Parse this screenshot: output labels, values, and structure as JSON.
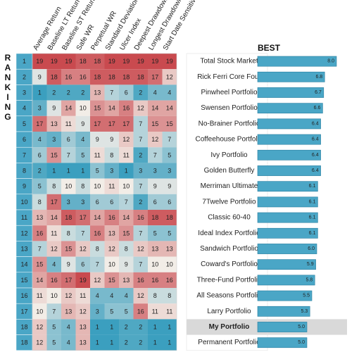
{
  "chart_data": {
    "type": "heatmap",
    "ranking_label": "RANKING",
    "columns": [
      "Average Return",
      "Baseline LT Return",
      "Baseline ST Return",
      "Safe WR",
      "Perpetual WR",
      "Standard Deviation",
      "Ulcer Index",
      "Deepest Drawdown",
      "Longest Drawdown",
      "Start Date Sensitivity"
    ],
    "rows": [
      {
        "rank": "1",
        "name": "Total Stock Market",
        "values": [
          19,
          19,
          19,
          18,
          18,
          19,
          19,
          19,
          19,
          19
        ],
        "best": 8.0,
        "best_label": "8.0"
      },
      {
        "rank": "2",
        "name": "Rick Ferri Core Four",
        "values": [
          9,
          18,
          16,
          16,
          18,
          18,
          18,
          18,
          17,
          12
        ],
        "best": 6.8,
        "best_label": "6.8"
      },
      {
        "rank": "3",
        "name": "Pinwheel Portfolio",
        "values": [
          1,
          2,
          2,
          2,
          13,
          7,
          6,
          2,
          4,
          4
        ],
        "best": 6.7,
        "best_label": "6.7"
      },
      {
        "rank": "4",
        "name": "Swensen Portfolio",
        "values": [
          3,
          9,
          14,
          10,
          15,
          14,
          16,
          12,
          14,
          14
        ],
        "best": 6.6,
        "best_label": "6.6"
      },
      {
        "rank": "5",
        "name": "No-Brainer Portfolio",
        "values": [
          17,
          13,
          11,
          9,
          17,
          17,
          17,
          7,
          15,
          15
        ],
        "best": 6.4,
        "best_label": "6.4"
      },
      {
        "rank": "6",
        "name": "Coffeehouse Portfolio",
        "values": [
          4,
          3,
          6,
          4,
          9,
          9,
          12,
          7,
          12,
          7
        ],
        "best": 6.4,
        "best_label": "6.4"
      },
      {
        "rank": "7",
        "name": "Ivy Portfolio",
        "values": [
          6,
          15,
          7,
          5,
          11,
          8,
          11,
          2,
          7,
          5
        ],
        "best": 6.4,
        "best_label": "6.4"
      },
      {
        "rank": "8",
        "name": "Golden Butterfly",
        "values": [
          2,
          1,
          1,
          1,
          5,
          3,
          1,
          3,
          3,
          3
        ],
        "best": 6.4,
        "best_label": "6.4"
      },
      {
        "rank": "9",
        "name": "Merriman Ultimate",
        "values": [
          5,
          8,
          10,
          8,
          10,
          11,
          10,
          7,
          9,
          9
        ],
        "best": 6.1,
        "best_label": "6.1"
      },
      {
        "rank": "10",
        "name": "7Twelve Portfolio",
        "values": [
          8,
          17,
          3,
          3,
          6,
          6,
          7,
          2,
          6,
          6
        ],
        "best": 6.1,
        "best_label": "6.1"
      },
      {
        "rank": "11",
        "name": "Classic 60-40",
        "values": [
          13,
          14,
          18,
          17,
          14,
          16,
          14,
          16,
          18,
          18
        ],
        "best": 6.1,
        "best_label": "6.1"
      },
      {
        "rank": "12",
        "name": "Ideal Index Portfolio",
        "values": [
          16,
          11,
          8,
          7,
          16,
          13,
          15,
          7,
          5,
          5
        ],
        "best": 6.1,
        "best_label": "6.1"
      },
      {
        "rank": "13",
        "name": "Sandwich Portfolio",
        "values": [
          7,
          12,
          15,
          12,
          8,
          12,
          8,
          12,
          13,
          13
        ],
        "best": 6.0,
        "best_label": "6.0"
      },
      {
        "rank": "14",
        "name": "Coward's Portfolio",
        "values": [
          15,
          4,
          9,
          6,
          7,
          10,
          9,
          7,
          10,
          10
        ],
        "best": 5.9,
        "best_label": "5.9"
      },
      {
        "rank": "15",
        "name": "Three-Fund Portfolio",
        "values": [
          14,
          16,
          17,
          19,
          12,
          15,
          13,
          16,
          16,
          16
        ],
        "best": 5.8,
        "best_label": "5.8"
      },
      {
        "rank": "16",
        "name": "All Seasons Portfolio",
        "values": [
          11,
          10,
          12,
          11,
          4,
          4,
          4,
          12,
          8,
          8
        ],
        "best": 5.5,
        "best_label": "5.5"
      },
      {
        "rank": "17",
        "name": "Larry Portfolio",
        "values": [
          10,
          7,
          13,
          12,
          3,
          5,
          5,
          16,
          11,
          11
        ],
        "best": 5.3,
        "best_label": "5.3"
      },
      {
        "rank": "18",
        "name": "My Portfolio",
        "values": [
          12,
          5,
          4,
          13,
          1,
          1,
          2,
          2,
          1,
          1
        ],
        "best": 5.0,
        "best_label": "5.0",
        "highlight": true
      },
      {
        "rank": "18",
        "name": "Permanent Portfolio",
        "values": [
          12,
          5,
          4,
          13,
          1,
          1,
          2,
          2,
          1,
          1
        ],
        "best": 5.0,
        "best_label": "5.0"
      }
    ],
    "best_title": "BEST",
    "best_range": [
      0,
      10
    ],
    "value_range": [
      1,
      19
    ],
    "colors": {
      "low": "#3b9fbf",
      "mid": "#f2ede7",
      "high": "#c94a4f",
      "bar": "#4aa6c6",
      "bar_border": "#2b7fa0",
      "highlight_row": "#d9d9d9",
      "rank_cell": "#4aa6c6"
    }
  }
}
